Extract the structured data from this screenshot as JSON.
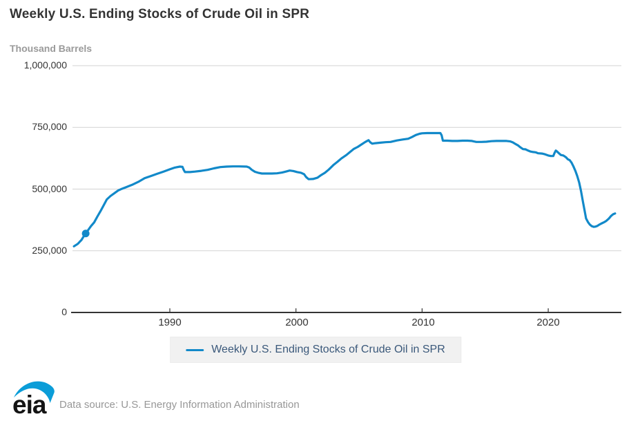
{
  "header": {
    "title": "Weekly U.S. Ending Stocks of Crude Oil in SPR",
    "subtitle": "Thousand Barrels"
  },
  "legend": {
    "label": "Weekly U.S. Ending Stocks of Crude Oil in SPR"
  },
  "footer": {
    "logo_text": "eia",
    "source": "Data source: U.S. Energy Information Administration"
  },
  "colors": {
    "line": "#1289c9",
    "marker": "#1289c9",
    "grid": "#d2d2d2",
    "axis": "#333333",
    "title_text": "#333333",
    "subtitle_text": "#9a9a9a",
    "legend_text": "#3a587a",
    "source_text": "#979797",
    "logo_swoosh": "#0b9dd8",
    "logo_letters": "#141414"
  },
  "chart_data": {
    "type": "line",
    "title": "Weekly U.S. Ending Stocks of Crude Oil in SPR",
    "xlabel": "",
    "ylabel": "Thousand Barrels",
    "ylim": [
      0,
      1000000
    ],
    "xlim": [
      1982.4,
      2025.8
    ],
    "grid": true,
    "legend_position": "bottom",
    "y_ticks": [
      {
        "label": "1,000,000",
        "value": 1000000
      },
      {
        "label": "750,000",
        "value": 750000
      },
      {
        "label": "500,000",
        "value": 500000
      },
      {
        "label": "250,000",
        "value": 250000
      },
      {
        "label": "0",
        "value": 0
      }
    ],
    "x_ticks": [
      {
        "label": "1990",
        "value": 1990
      },
      {
        "label": "2000",
        "value": 2000
      },
      {
        "label": "2010",
        "value": 2010
      },
      {
        "label": "2020",
        "value": 2020
      }
    ],
    "marked_point": {
      "x": 1983.33,
      "y": 320000
    },
    "series": [
      {
        "name": "Weekly U.S. Ending Stocks of Crude Oil in SPR",
        "points": [
          [
            1982.4,
            268000
          ],
          [
            1982.7,
            278000
          ],
          [
            1983.0,
            294000
          ],
          [
            1983.15,
            307000
          ],
          [
            1983.33,
            320000
          ],
          [
            1983.5,
            332000
          ],
          [
            1983.75,
            350000
          ],
          [
            1984.0,
            365000
          ],
          [
            1984.25,
            388000
          ],
          [
            1984.5,
            410000
          ],
          [
            1984.75,
            434000
          ],
          [
            1985.0,
            458000
          ],
          [
            1985.3,
            472000
          ],
          [
            1985.6,
            483000
          ],
          [
            1985.9,
            494000
          ],
          [
            1986.2,
            501000
          ],
          [
            1986.5,
            507000
          ],
          [
            1987.0,
            517000
          ],
          [
            1987.5,
            529000
          ],
          [
            1988.0,
            544000
          ],
          [
            1988.5,
            553000
          ],
          [
            1989.0,
            562000
          ],
          [
            1989.5,
            571000
          ],
          [
            1990.0,
            580000
          ],
          [
            1990.4,
            587000
          ],
          [
            1990.8,
            591000
          ],
          [
            1991.0,
            590000
          ],
          [
            1991.1,
            578000
          ],
          [
            1991.2,
            569000
          ],
          [
            1991.6,
            569000
          ],
          [
            1992.0,
            571000
          ],
          [
            1992.5,
            574000
          ],
          [
            1993.0,
            578000
          ],
          [
            1993.5,
            584000
          ],
          [
            1994.0,
            589000
          ],
          [
            1994.5,
            591000
          ],
          [
            1995.0,
            592000
          ],
          [
            1995.5,
            592000
          ],
          [
            1996.1,
            591000
          ],
          [
            1996.3,
            587000
          ],
          [
            1996.5,
            578000
          ],
          [
            1996.75,
            570000
          ],
          [
            1997.0,
            566000
          ],
          [
            1997.3,
            563000
          ],
          [
            1997.7,
            563000
          ],
          [
            1998.1,
            563000
          ],
          [
            1998.5,
            564000
          ],
          [
            1998.9,
            567000
          ],
          [
            1999.2,
            571000
          ],
          [
            1999.5,
            575000
          ],
          [
            1999.8,
            573000
          ],
          [
            2000.1,
            569000
          ],
          [
            2000.4,
            566000
          ],
          [
            2000.65,
            560000
          ],
          [
            2000.8,
            549000
          ],
          [
            2001.0,
            540000
          ],
          [
            2001.35,
            541000
          ],
          [
            2001.7,
            546000
          ],
          [
            2002.0,
            557000
          ],
          [
            2002.3,
            566000
          ],
          [
            2002.6,
            579000
          ],
          [
            2003.0,
            599000
          ],
          [
            2003.3,
            611000
          ],
          [
            2003.6,
            624000
          ],
          [
            2004.0,
            638000
          ],
          [
            2004.3,
            651000
          ],
          [
            2004.6,
            663000
          ],
          [
            2004.9,
            671000
          ],
          [
            2005.2,
            681000
          ],
          [
            2005.5,
            691000
          ],
          [
            2005.75,
            698000
          ],
          [
            2005.9,
            689000
          ],
          [
            2006.05,
            684000
          ],
          [
            2006.3,
            686000
          ],
          [
            2006.7,
            688000
          ],
          [
            2007.1,
            690000
          ],
          [
            2007.5,
            691000
          ],
          [
            2008.0,
            697000
          ],
          [
            2008.5,
            701000
          ],
          [
            2008.9,
            704000
          ],
          [
            2009.2,
            711000
          ],
          [
            2009.5,
            719000
          ],
          [
            2009.8,
            724000
          ],
          [
            2010.0,
            726000
          ],
          [
            2010.4,
            727000
          ],
          [
            2010.8,
            727000
          ],
          [
            2011.2,
            727000
          ],
          [
            2011.45,
            727000
          ],
          [
            2011.55,
            718000
          ],
          [
            2011.65,
            696000
          ],
          [
            2012.0,
            696000
          ],
          [
            2012.4,
            695000
          ],
          [
            2012.8,
            695000
          ],
          [
            2013.2,
            696000
          ],
          [
            2013.6,
            696000
          ],
          [
            2013.95,
            695000
          ],
          [
            2014.1,
            693000
          ],
          [
            2014.3,
            691000
          ],
          [
            2014.7,
            691000
          ],
          [
            2015.1,
            692000
          ],
          [
            2015.5,
            694000
          ],
          [
            2015.9,
            695000
          ],
          [
            2016.3,
            695000
          ],
          [
            2016.7,
            695000
          ],
          [
            2017.0,
            693000
          ],
          [
            2017.2,
            689000
          ],
          [
            2017.4,
            683000
          ],
          [
            2017.6,
            677000
          ],
          [
            2017.8,
            669000
          ],
          [
            2018.0,
            662000
          ],
          [
            2018.2,
            661000
          ],
          [
            2018.4,
            656000
          ],
          [
            2018.6,
            652000
          ],
          [
            2018.8,
            650000
          ],
          [
            2019.0,
            649000
          ],
          [
            2019.2,
            645000
          ],
          [
            2019.5,
            644000
          ],
          [
            2019.75,
            641000
          ],
          [
            2020.0,
            636000
          ],
          [
            2020.2,
            634000
          ],
          [
            2020.4,
            634000
          ],
          [
            2020.5,
            646000
          ],
          [
            2020.6,
            656000
          ],
          [
            2020.7,
            652000
          ],
          [
            2020.85,
            645000
          ],
          [
            2021.0,
            638000
          ],
          [
            2021.2,
            636000
          ],
          [
            2021.4,
            629000
          ],
          [
            2021.55,
            621000
          ],
          [
            2021.7,
            617000
          ],
          [
            2021.85,
            607000
          ],
          [
            2022.0,
            592000
          ],
          [
            2022.15,
            574000
          ],
          [
            2022.3,
            553000
          ],
          [
            2022.45,
            527000
          ],
          [
            2022.6,
            492000
          ],
          [
            2022.75,
            450000
          ],
          [
            2022.9,
            408000
          ],
          [
            2023.0,
            381000
          ],
          [
            2023.15,
            366000
          ],
          [
            2023.3,
            356000
          ],
          [
            2023.45,
            350000
          ],
          [
            2023.6,
            347000
          ],
          [
            2023.75,
            348000
          ],
          [
            2023.9,
            351000
          ],
          [
            2024.05,
            356000
          ],
          [
            2024.2,
            360000
          ],
          [
            2024.4,
            365000
          ],
          [
            2024.6,
            371000
          ],
          [
            2024.8,
            380000
          ],
          [
            2025.0,
            392000
          ],
          [
            2025.15,
            398000
          ],
          [
            2025.3,
            401000
          ]
        ]
      }
    ]
  }
}
